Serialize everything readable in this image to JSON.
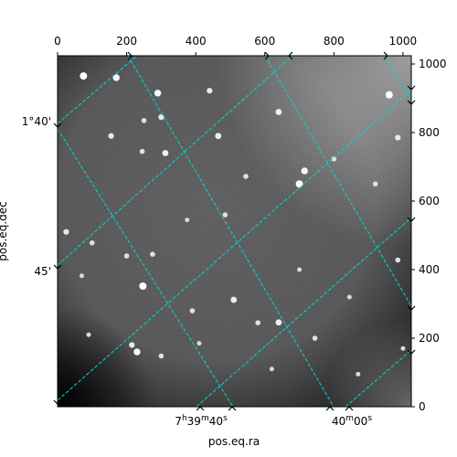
{
  "chart_data": {
    "type": "scatter",
    "image_kind": "grayscale astronomical image (star field) with WCS coordinate grid overlay",
    "colormap": "gray",
    "grid": true,
    "grid_color": "#00d8d8",
    "grid_style": "dashed",
    "xlabel": "pos.eq.ra",
    "ylabel": "pos.eq.dec",
    "pixel_axes": {
      "x_ticks": [
        0,
        200,
        400,
        600,
        800,
        1000
      ],
      "y_ticks": [
        0,
        200,
        400,
        600,
        800,
        1000
      ],
      "x_tick_labels": [
        "0",
        "200",
        "400",
        "600",
        "800",
        "1000"
      ],
      "y_tick_labels": [
        "0",
        "200",
        "400",
        "600",
        "800",
        "1000"
      ],
      "xlim": [
        0,
        1024
      ],
      "ylim": [
        0,
        1024
      ]
    },
    "world_axes": {
      "ra_ticks": [
        {
          "label_h": "7",
          "label_m": "39",
          "label_s": "40"
        },
        {
          "label_h": "",
          "label_m": "40",
          "label_s": "00"
        }
      ],
      "dec_ticks": [
        "1°40'",
        "45'"
      ]
    },
    "stars": [
      {
        "x": 75,
        "y": 965,
        "v": 1.0
      },
      {
        "x": 170,
        "y": 960,
        "v": 0.9
      },
      {
        "x": 290,
        "y": 915,
        "v": 0.9
      },
      {
        "x": 440,
        "y": 922,
        "v": 0.7
      },
      {
        "x": 640,
        "y": 860,
        "v": 0.8
      },
      {
        "x": 960,
        "y": 910,
        "v": 1.0
      },
      {
        "x": 300,
        "y": 845,
        "v": 0.7
      },
      {
        "x": 250,
        "y": 835,
        "v": 0.6
      },
      {
        "x": 155,
        "y": 790,
        "v": 0.7
      },
      {
        "x": 465,
        "y": 790,
        "v": 0.8
      },
      {
        "x": 985,
        "y": 785,
        "v": 0.7
      },
      {
        "x": 245,
        "y": 745,
        "v": 0.6
      },
      {
        "x": 312,
        "y": 740,
        "v": 0.8
      },
      {
        "x": 800,
        "y": 723,
        "v": 0.6
      },
      {
        "x": 715,
        "y": 688,
        "v": 0.9
      },
      {
        "x": 700,
        "y": 650,
        "v": 1.0
      },
      {
        "x": 545,
        "y": 672,
        "v": 0.6
      },
      {
        "x": 920,
        "y": 650,
        "v": 0.6
      },
      {
        "x": 375,
        "y": 545,
        "v": 0.5
      },
      {
        "x": 485,
        "y": 560,
        "v": 0.6
      },
      {
        "x": 25,
        "y": 510,
        "v": 0.7
      },
      {
        "x": 100,
        "y": 478,
        "v": 0.6
      },
      {
        "x": 200,
        "y": 440,
        "v": 0.6
      },
      {
        "x": 275,
        "y": 445,
        "v": 0.6
      },
      {
        "x": 700,
        "y": 400,
        "v": 0.5
      },
      {
        "x": 985,
        "y": 428,
        "v": 0.6
      },
      {
        "x": 247,
        "y": 352,
        "v": 1.0
      },
      {
        "x": 70,
        "y": 382,
        "v": 0.5
      },
      {
        "x": 510,
        "y": 312,
        "v": 0.8
      },
      {
        "x": 390,
        "y": 280,
        "v": 0.6
      },
      {
        "x": 640,
        "y": 246,
        "v": 0.8
      },
      {
        "x": 580,
        "y": 245,
        "v": 0.6
      },
      {
        "x": 215,
        "y": 180,
        "v": 0.7
      },
      {
        "x": 230,
        "y": 160,
        "v": 0.9
      },
      {
        "x": 300,
        "y": 148,
        "v": 0.6
      },
      {
        "x": 90,
        "y": 210,
        "v": 0.5
      },
      {
        "x": 745,
        "y": 200,
        "v": 0.6
      },
      {
        "x": 1000,
        "y": 170,
        "v": 0.5
      },
      {
        "x": 870,
        "y": 95,
        "v": 0.5
      },
      {
        "x": 410,
        "y": 185,
        "v": 0.5
      },
      {
        "x": 845,
        "y": 320,
        "v": 0.5
      },
      {
        "x": 620,
        "y": 110,
        "v": 0.5
      }
    ]
  }
}
